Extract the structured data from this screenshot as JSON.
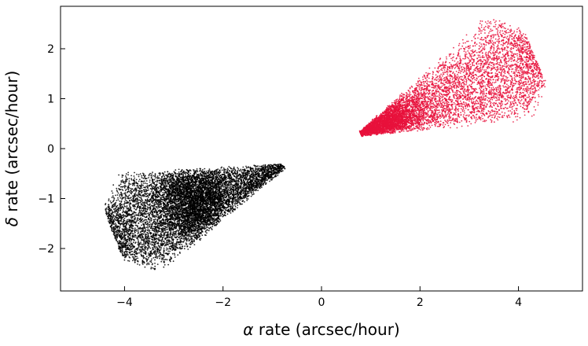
{
  "chart_data": {
    "type": "scatter",
    "title": "",
    "xlabel": {
      "symbol": "α",
      "text": " rate (arcsec/hour)"
    },
    "ylabel": {
      "symbol": "δ",
      "text": " rate (arcsec/hour)"
    },
    "xlim": [
      -5.3,
      5.3
    ],
    "ylim": [
      -2.85,
      2.85
    ],
    "xticks": [
      -4,
      -2,
      0,
      2,
      4
    ],
    "xtick_labels": [
      "−4",
      "−2",
      "0",
      "2",
      "4"
    ],
    "yticks": [
      -2,
      -1,
      0,
      1,
      2
    ],
    "ytick_labels": [
      "−2",
      "−1",
      "0",
      "1",
      "2"
    ],
    "grid": false,
    "tick_direction": "in",
    "series": [
      {
        "color": "#e8123c",
        "cone": {
          "apex": [
            0.8,
            0.3
          ],
          "far_end": [
            3.8,
            1.6
          ],
          "far_half_width": 1.1
        },
        "dense_core": [
          1.3,
          0.55
        ],
        "x_range": [
          0.75,
          4.75
        ],
        "y_range": [
          0.22,
          2.6
        ],
        "approx_points": 7000
      },
      {
        "color": "#000000",
        "cone": {
          "apex": [
            -0.75,
            -0.35
          ],
          "far_end": [
            -3.7,
            -1.5
          ],
          "far_half_width": 1.05
        },
        "dense_core": [
          -2.6,
          -1.15
        ],
        "x_range": [
          -4.75,
          -0.68
        ],
        "y_range": [
          -2.6,
          -0.22
        ],
        "approx_points": 9000
      }
    ]
  }
}
